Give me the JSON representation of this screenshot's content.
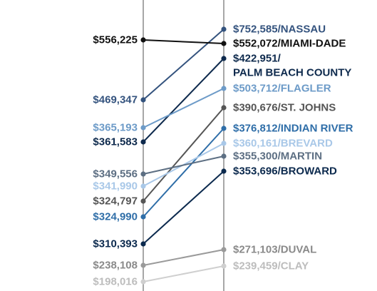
{
  "chart_data": {
    "type": "slope",
    "title": "",
    "xlabel": "",
    "ylabel": "",
    "series": [
      {
        "name": "NASSAU",
        "start_label": "$469,347",
        "end_label": "$752,585/NASSAU",
        "values": [
          469347,
          752585
        ],
        "color": "#34537e",
        "label_color": "#34537e"
      },
      {
        "name": "MIAMI-DADE",
        "start_label": "$556,225",
        "end_label": "$552,072/MIAMI-DADE",
        "values": [
          556225,
          552072
        ],
        "color": "#111111",
        "label_color": "#111111"
      },
      {
        "name": "PALM BEACH COUNTY",
        "start_label": "$361,583",
        "end_label": "$422,951/",
        "end_label_line2": "PALM BEACH COUNTY",
        "values": [
          361583,
          422951
        ],
        "color": "#0e2a4d",
        "label_color": "#0e2a4d"
      },
      {
        "name": "FLAGLER",
        "start_label": "$365,193",
        "end_label": "$503,712/FLAGLER",
        "values": [
          365193,
          503712
        ],
        "color": "#6d9bc8",
        "label_color": "#6d9bc8"
      },
      {
        "name": "ST. JOHNS",
        "start_label": "$324,797",
        "end_label": "$390,676/ST. JOHNS",
        "values": [
          324797,
          390676
        ],
        "color": "#555555",
        "label_color": "#555555"
      },
      {
        "name": "INDIAN RIVER",
        "start_label": "$324,990",
        "end_label": "$376,812/INDIAN RIVER",
        "values": [
          324990,
          376812
        ],
        "color": "#2f6ea8",
        "label_color": "#2f6ea8"
      },
      {
        "name": "BREVARD",
        "start_label": "$341,990",
        "end_label": "$360,161/BREVARD",
        "values": [
          341990,
          360161
        ],
        "color": "#a9c8e8",
        "label_color": "#a9c8e8"
      },
      {
        "name": "MARTIN",
        "start_label": "$349,556",
        "end_label": "$355,300/MARTIN",
        "values": [
          349556,
          355300
        ],
        "color": "#5d6f83",
        "label_color": "#5d6f83"
      },
      {
        "name": "BROWARD",
        "start_label": "$310,393",
        "end_label": "$353,696/BROWARD",
        "values": [
          310393,
          353696
        ],
        "color": "#0c2a4e",
        "label_color": "#0c2a4e"
      },
      {
        "name": "DUVAL",
        "start_label": "$238,108",
        "end_label": "$271,103/DUVAL",
        "values": [
          238108,
          271103
        ],
        "color": "#9a9a9a",
        "label_color": "#8a8a8a"
      },
      {
        "name": "CLAY",
        "start_label": "$198,016",
        "end_label": "$239,459/CLAY",
        "values": [
          198016,
          239459
        ],
        "color": "#cfcfcf",
        "label_color": "#bdbdbd"
      }
    ]
  }
}
